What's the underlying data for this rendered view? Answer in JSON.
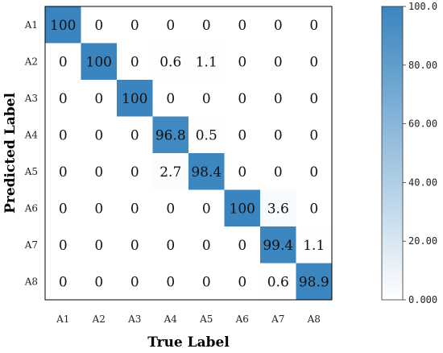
{
  "chart_data": {
    "type": "heatmap",
    "xlabel": "True Label",
    "ylabel": "Predicted Label",
    "x_categories": [
      "A1",
      "A2",
      "A3",
      "A4",
      "A5",
      "A6",
      "A7",
      "A8"
    ],
    "y_categories": [
      "A1",
      "A2",
      "A3",
      "A4",
      "A5",
      "A6",
      "A7",
      "A8"
    ],
    "matrix": [
      [
        100,
        0,
        0,
        0,
        0,
        0,
        0,
        0
      ],
      [
        0,
        100,
        0,
        0.6,
        1.1,
        0,
        0,
        0
      ],
      [
        0,
        0,
        100,
        0,
        0,
        0,
        0,
        0
      ],
      [
        0,
        0,
        0,
        96.8,
        0.5,
        0,
        0,
        0
      ],
      [
        0,
        0,
        0,
        2.7,
        98.4,
        0,
        0,
        0
      ],
      [
        0,
        0,
        0,
        0,
        0,
        100,
        3.6,
        0
      ],
      [
        0,
        0,
        0,
        0,
        0,
        0,
        99.4,
        1.1
      ],
      [
        0,
        0,
        0,
        0,
        0,
        0,
        0.6,
        98.9
      ]
    ],
    "colorbar": {
      "min": 0,
      "max": 100,
      "ticks": [
        "0.000",
        "20.00",
        "40.00",
        "60.00",
        "80.00",
        "100.0"
      ],
      "color_low": "#ffffff",
      "color_high": "#3a85bf"
    },
    "legend": "right"
  }
}
